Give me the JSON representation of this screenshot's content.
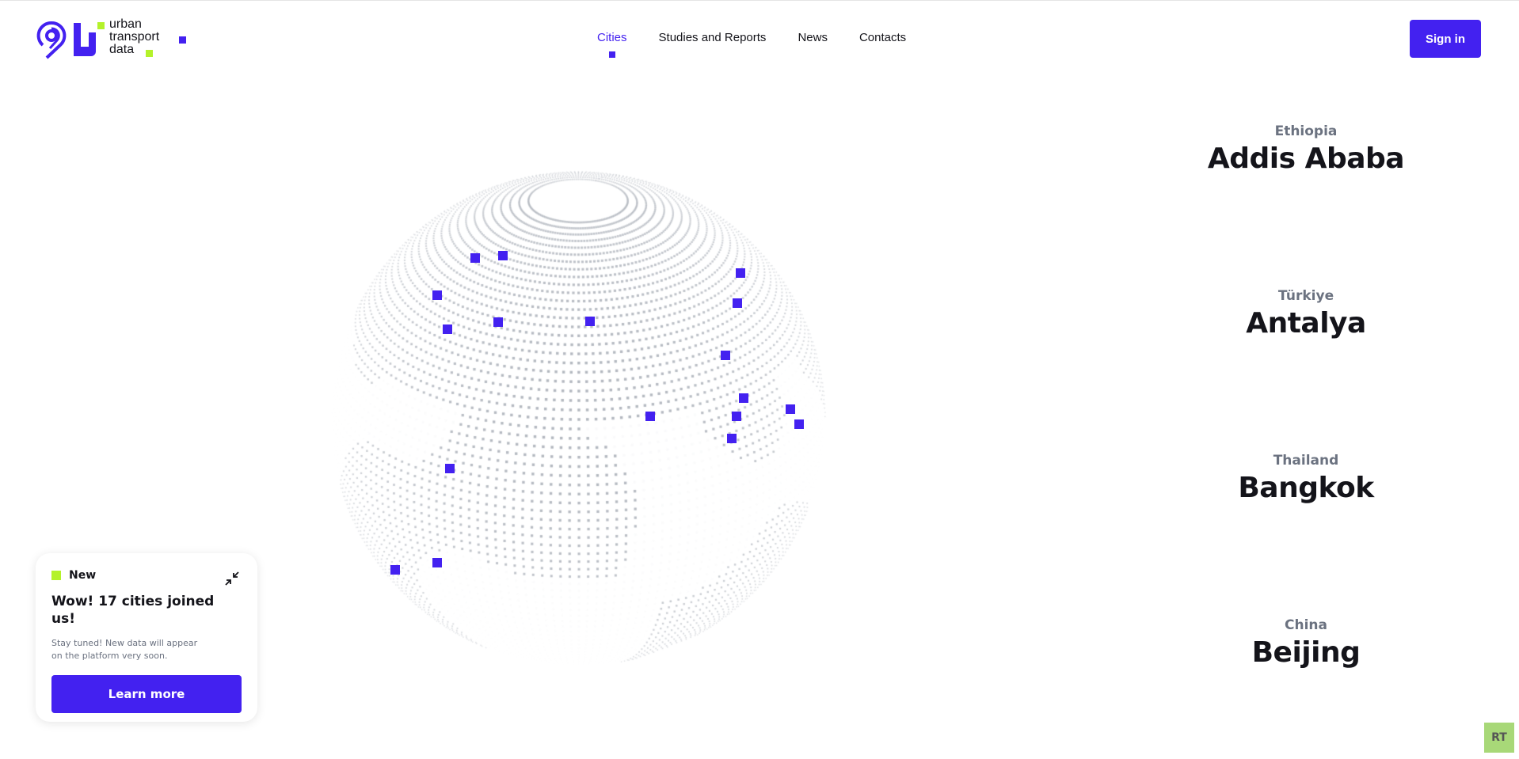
{
  "logo": {
    "lines": [
      "urban",
      "transport",
      "data"
    ],
    "accent": "#4321f0",
    "green": "#b4f22a"
  },
  "nav": {
    "items": [
      {
        "label": "Cities",
        "active": true
      },
      {
        "label": "Studies and Reports"
      },
      {
        "label": "News"
      },
      {
        "label": "Contacts"
      }
    ]
  },
  "header": {
    "sign_in": "Sign in"
  },
  "cities": [
    {
      "country": "Ethiopia",
      "city": "Addis Ababa"
    },
    {
      "country": "Türkiye",
      "city": "Antalya"
    },
    {
      "country": "Thailand",
      "city": "Bangkok"
    },
    {
      "country": "China",
      "city": "Beijing"
    }
  ],
  "card": {
    "badge": "New",
    "title": "Wow! 17 cities joined us!",
    "text": "Stay tuned! New data will appear on the platform very soon.",
    "button": "Learn more",
    "collapse_icon": "collapse-arrows-icon"
  },
  "corner_badge": "RT"
}
